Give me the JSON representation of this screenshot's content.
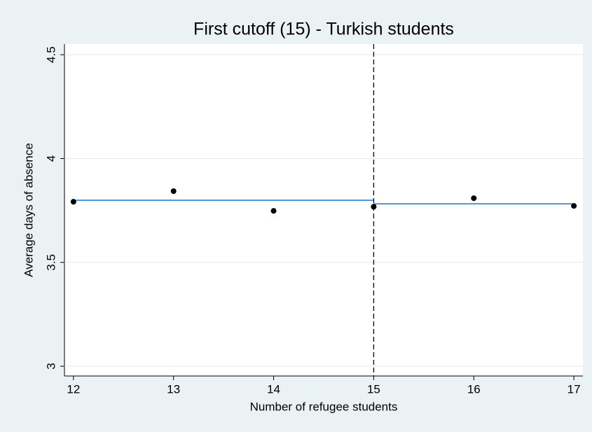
{
  "chart_data": {
    "type": "scatter",
    "title": "First cutoff (15) - Turkish students",
    "x_label": "Number of refugee students",
    "y_label": "Average days of absence",
    "xlim": [
      11.91,
      17.09
    ],
    "ylim": [
      2.953,
      4.551
    ],
    "xticks": [
      12,
      13,
      14,
      15,
      16,
      17
    ],
    "yticks": [
      3,
      3.5,
      4,
      4.5
    ],
    "grid": true,
    "cutoff": 15,
    "series": [
      {
        "color": "#000000",
        "x": [
          12,
          13,
          14,
          15,
          16,
          17
        ],
        "values": [
          3.792,
          3.843,
          3.748,
          3.768,
          3.809,
          3.772
        ]
      }
    ],
    "fit_lines": [
      {
        "color": "#1a76c8",
        "x": [
          12,
          15
        ],
        "values": [
          3.799,
          3.799
        ]
      },
      {
        "color": "#1a76c8",
        "x": [
          15,
          17
        ],
        "values": [
          3.782,
          3.782
        ]
      }
    ]
  }
}
